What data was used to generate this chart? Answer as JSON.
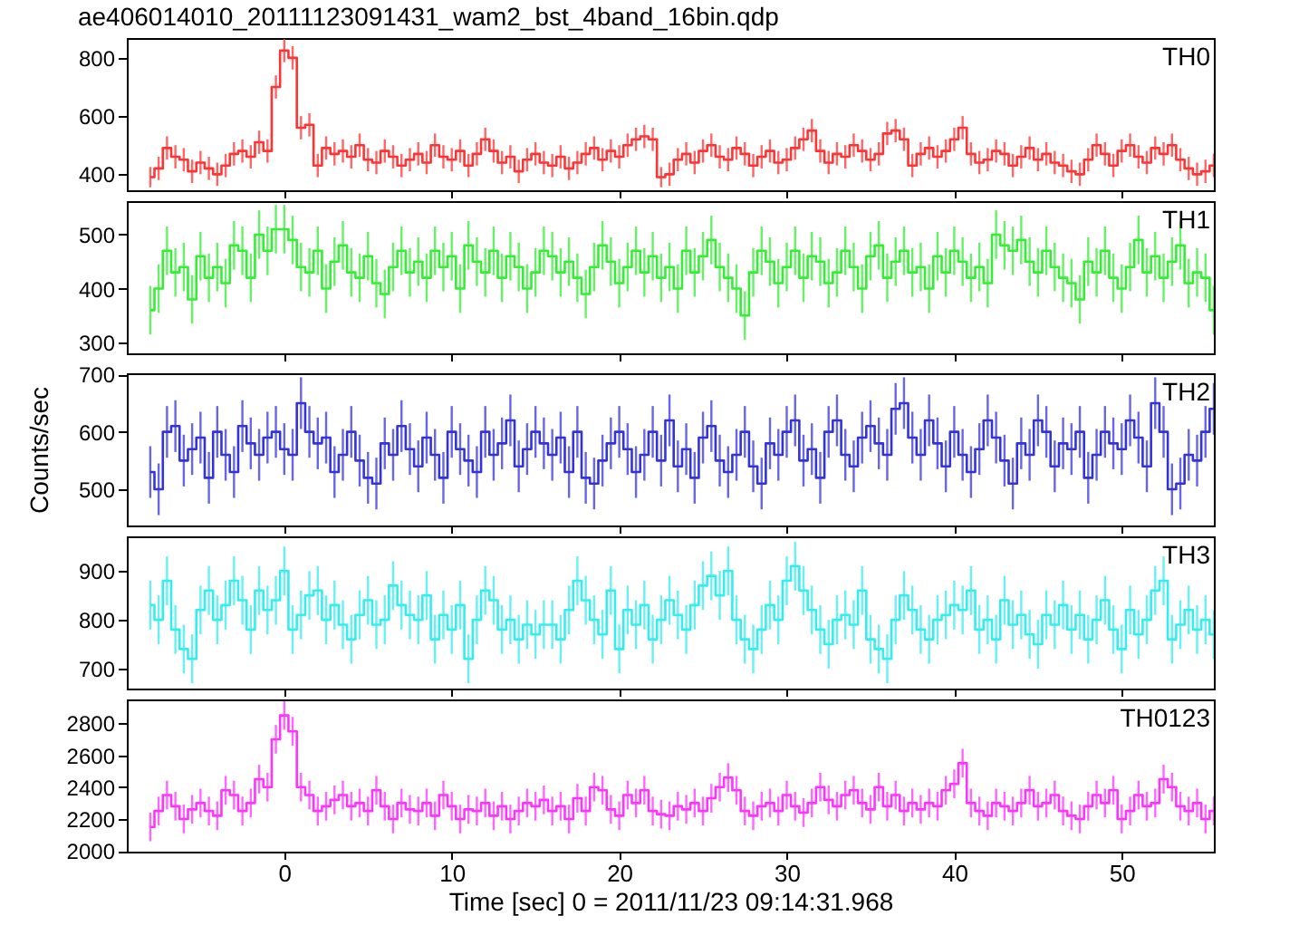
{
  "chart_data": [
    {
      "type": "step",
      "title": "ae406014010_20111123091431_wam2_bst_4band_16bin.qdp",
      "xlim": [
        -9.4,
        55.5
      ],
      "xticks": [
        0,
        10,
        20,
        30,
        40,
        50
      ],
      "ylim": [
        345,
        868
      ],
      "yticks": [
        400,
        600,
        800
      ],
      "tick_labels": "y",
      "x": [
        -8,
        -7.5,
        -7,
        -6.5,
        -6,
        -5.5,
        -5,
        -4.5,
        -4,
        -3.5,
        -3,
        -2.5,
        -2,
        -1.5,
        -1,
        -0.5,
        0,
        0.5,
        1,
        1.5,
        2,
        2.5,
        3,
        3.5,
        4,
        4.5,
        5,
        5.5,
        6,
        6.5,
        7,
        7.5,
        8,
        8.5,
        9,
        9.5,
        10,
        10.5,
        11,
        11.5,
        12,
        12.5,
        13,
        13.5,
        14,
        14.5,
        15,
        15.5,
        16,
        16.5,
        17,
        17.5,
        18,
        18.5,
        19,
        19.5,
        20,
        20.5,
        21,
        21.5,
        22,
        22.5,
        23,
        23.5,
        24,
        24.5,
        25,
        25.5,
        26,
        26.5,
        27,
        27.5,
        28,
        28.5,
        29,
        29.5,
        30,
        30.5,
        31,
        31.5,
        32,
        32.5,
        33,
        33.5,
        34,
        34.5,
        35,
        35.5,
        36,
        36.5,
        37,
        37.5,
        38,
        38.5,
        39,
        39.5,
        40,
        40.5,
        41,
        41.5,
        42,
        42.5,
        43,
        43.5,
        44,
        44.5,
        45,
        45.5,
        46,
        46.5,
        47,
        47.5,
        48,
        48.5,
        49,
        49.5,
        50,
        50.5,
        51,
        51.5,
        52,
        52.5,
        53,
        53.5,
        54,
        54.5,
        55,
        55.5
      ],
      "series": [
        {
          "name": "TH0",
          "color": "#ff3333",
          "values": [
            390,
            420,
            490,
            460,
            450,
            410,
            440,
            420,
            400,
            430,
            470,
            480,
            460,
            510,
            480,
            700,
            825,
            800,
            560,
            570,
            430,
            490,
            470,
            480,
            460,
            500,
            450,
            440,
            480,
            460,
            430,
            450,
            470,
            440,
            500,
            460,
            450,
            480,
            430,
            470,
            520,
            480,
            440,
            460,
            410,
            450,
            470,
            440,
            430,
            460,
            420,
            440,
            470,
            490,
            450,
            480,
            460,
            500,
            520,
            530,
            520,
            390,
            400,
            450,
            470,
            440,
            480,
            500,
            460,
            450,
            490,
            470,
            430,
            460,
            480,
            440,
            450,
            490,
            520,
            550,
            480,
            440,
            470,
            460,
            500,
            480,
            450,
            470,
            540,
            550,
            520,
            430,
            470,
            490,
            460,
            480,
            520,
            560,
            470,
            440,
            450,
            480,
            470,
            430,
            460,
            490,
            450,
            470,
            440,
            430,
            410,
            400,
            450,
            500,
            470,
            430,
            480,
            500,
            460,
            440,
            490,
            470,
            500,
            450,
            420,
            400,
            410,
            430
          ],
          "errors": [
            35,
            40,
            40,
            40,
            40,
            40,
            40,
            40,
            40,
            40,
            40,
            40,
            40,
            40,
            40,
            40,
            40,
            40,
            40,
            40,
            40,
            40,
            40,
            40,
            40,
            40,
            40,
            40,
            40,
            40,
            40,
            40,
            40,
            40,
            40,
            40,
            40,
            40,
            40,
            40,
            40,
            40,
            40,
            40,
            40,
            40,
            40,
            40,
            40,
            40,
            40,
            40,
            40,
            40,
            40,
            40,
            40,
            40,
            40,
            40,
            40,
            35,
            40,
            40,
            40,
            40,
            40,
            40,
            40,
            40,
            40,
            40,
            40,
            40,
            40,
            40,
            40,
            40,
            40,
            40,
            40,
            40,
            40,
            40,
            40,
            40,
            40,
            40,
            40,
            40,
            40,
            40,
            40,
            40,
            40,
            40,
            40,
            40,
            40,
            40,
            40,
            40,
            40,
            40,
            40,
            40,
            40,
            40,
            40,
            40,
            40,
            40,
            40,
            40,
            40,
            40,
            40,
            40,
            40,
            40,
            40,
            40,
            40,
            40,
            40,
            40,
            40,
            40
          ]
        }
      ]
    },
    {
      "type": "step",
      "xlim": [
        -9.4,
        55.5
      ],
      "xticks": [
        0,
        10,
        20,
        30,
        40,
        50
      ],
      "ylim": [
        280,
        562
      ],
      "yticks": [
        300,
        400,
        500
      ],
      "tick_labels": "y",
      "x": [
        -8,
        -7.5,
        -7,
        -6.5,
        -6,
        -5.5,
        -5,
        -4.5,
        -4,
        -3.5,
        -3,
        -2.5,
        -2,
        -1.5,
        -1,
        -0.5,
        0,
        0.5,
        1,
        1.5,
        2,
        2.5,
        3,
        3.5,
        4,
        4.5,
        5,
        5.5,
        6,
        6.5,
        7,
        7.5,
        8,
        8.5,
        9,
        9.5,
        10,
        10.5,
        11,
        11.5,
        12,
        12.5,
        13,
        13.5,
        14,
        14.5,
        15,
        15.5,
        16,
        16.5,
        17,
        17.5,
        18,
        18.5,
        19,
        19.5,
        20,
        20.5,
        21,
        21.5,
        22,
        22.5,
        23,
        23.5,
        24,
        24.5,
        25,
        25.5,
        26,
        26.5,
        27,
        27.5,
        28,
        28.5,
        29,
        29.5,
        30,
        30.5,
        31,
        31.5,
        32,
        32.5,
        33,
        33.5,
        34,
        34.5,
        35,
        35.5,
        36,
        36.5,
        37,
        37.5,
        38,
        38.5,
        39,
        39.5,
        40,
        40.5,
        41,
        41.5,
        42,
        42.5,
        43,
        43.5,
        44,
        44.5,
        45,
        45.5,
        46,
        46.5,
        47,
        47.5,
        48,
        48.5,
        49,
        49.5,
        50,
        50.5,
        51,
        51.5,
        52,
        52.5,
        53,
        53.5,
        54,
        54.5,
        55,
        55.5
      ],
      "series": [
        {
          "name": "TH1",
          "color": "#33ee33",
          "values": [
            360,
            400,
            470,
            430,
            440,
            380,
            460,
            420,
            440,
            410,
            480,
            470,
            420,
            500,
            470,
            510,
            510,
            490,
            440,
            430,
            470,
            400,
            450,
            480,
            430,
            420,
            460,
            410,
            390,
            440,
            470,
            430,
            450,
            420,
            470,
            440,
            460,
            400,
            480,
            450,
            430,
            470,
            420,
            460,
            440,
            400,
            430,
            470,
            460,
            430,
            450,
            420,
            390,
            440,
            480,
            450,
            410,
            440,
            470,
            430,
            460,
            420,
            440,
            400,
            470,
            430,
            460,
            490,
            440,
            420,
            400,
            350,
            430,
            470,
            450,
            410,
            440,
            470,
            420,
            460,
            450,
            410,
            430,
            470,
            440,
            400,
            460,
            480,
            420,
            450,
            470,
            430,
            440,
            400,
            460,
            430,
            470,
            450,
            420,
            440,
            410,
            500,
            480,
            470,
            490,
            450,
            430,
            470,
            440,
            420,
            410,
            380,
            450,
            430,
            470,
            420,
            400,
            440,
            490,
            430,
            460,
            420,
            450,
            480,
            410,
            430,
            420,
            360
          ],
          "errors": [
            45,
            45,
            45,
            45,
            45,
            45,
            45,
            45,
            45,
            45,
            45,
            45,
            45,
            45,
            45,
            45,
            45,
            45,
            45,
            45,
            45,
            45,
            45,
            45,
            45,
            45,
            45,
            45,
            45,
            45,
            45,
            45,
            45,
            45,
            45,
            45,
            45,
            45,
            45,
            45,
            45,
            45,
            45,
            45,
            45,
            45,
            45,
            45,
            45,
            45,
            45,
            45,
            45,
            45,
            45,
            45,
            45,
            45,
            45,
            45,
            45,
            45,
            45,
            45,
            45,
            45,
            45,
            45,
            45,
            45,
            45,
            45,
            45,
            45,
            45,
            45,
            45,
            45,
            45,
            45,
            45,
            45,
            45,
            45,
            45,
            45,
            45,
            45,
            45,
            45,
            45,
            45,
            45,
            45,
            45,
            45,
            45,
            45,
            45,
            45,
            45,
            45,
            45,
            45,
            45,
            45,
            45,
            45,
            45,
            45,
            45,
            45,
            45,
            45,
            45,
            45,
            45,
            45,
            45,
            45,
            45,
            45,
            45,
            45,
            45,
            45,
            45,
            45
          ]
        }
      ]
    },
    {
      "type": "step",
      "ylabel": "Counts/sec",
      "xlim": [
        -9.4,
        55.5
      ],
      "xticks": [
        0,
        10,
        20,
        30,
        40,
        50
      ],
      "ylim": [
        437,
        702
      ],
      "yticks": [
        500,
        600,
        700
      ],
      "tick_labels": "y",
      "x": [
        -8,
        -7.5,
        -7,
        -6.5,
        -6,
        -5.5,
        -5,
        -4.5,
        -4,
        -3.5,
        -3,
        -2.5,
        -2,
        -1.5,
        -1,
        -0.5,
        0,
        0.5,
        1,
        1.5,
        2,
        2.5,
        3,
        3.5,
        4,
        4.5,
        5,
        5.5,
        6,
        6.5,
        7,
        7.5,
        8,
        8.5,
        9,
        9.5,
        10,
        10.5,
        11,
        11.5,
        12,
        12.5,
        13,
        13.5,
        14,
        14.5,
        15,
        15.5,
        16,
        16.5,
        17,
        17.5,
        18,
        18.5,
        19,
        19.5,
        20,
        20.5,
        21,
        21.5,
        22,
        22.5,
        23,
        23.5,
        24,
        24.5,
        25,
        25.5,
        26,
        26.5,
        27,
        27.5,
        28,
        28.5,
        29,
        29.5,
        30,
        30.5,
        31,
        31.5,
        32,
        32.5,
        33,
        33.5,
        34,
        34.5,
        35,
        35.5,
        36,
        36.5,
        37,
        37.5,
        38,
        38.5,
        39,
        39.5,
        40,
        40.5,
        41,
        41.5,
        42,
        42.5,
        43,
        43.5,
        44,
        44.5,
        45,
        45.5,
        46,
        46.5,
        47,
        47.5,
        48,
        48.5,
        49,
        49.5,
        50,
        50.5,
        51,
        51.5,
        52,
        52.5,
        53,
        53.5,
        54,
        54.5,
        55,
        55.5
      ],
      "series": [
        {
          "name": "TH2",
          "color": "#3333dd",
          "values": [
            530,
            500,
            600,
            610,
            550,
            570,
            590,
            520,
            600,
            560,
            530,
            610,
            580,
            560,
            590,
            600,
            570,
            560,
            650,
            600,
            580,
            590,
            530,
            560,
            600,
            550,
            520,
            510,
            580,
            560,
            610,
            570,
            540,
            590,
            560,
            520,
            600,
            570,
            550,
            530,
            600,
            560,
            580,
            620,
            540,
            570,
            600,
            580,
            560,
            590,
            530,
            600,
            520,
            510,
            550,
            580,
            600,
            570,
            530,
            560,
            600,
            550,
            620,
            540,
            570,
            520,
            590,
            610,
            550,
            530,
            560,
            600,
            540,
            510,
            580,
            560,
            600,
            620,
            550,
            570,
            520,
            600,
            620,
            560,
            540,
            590,
            610,
            580,
            560,
            640,
            650,
            590,
            560,
            620,
            580,
            540,
            600,
            560,
            530,
            570,
            620,
            590,
            550,
            510,
            580,
            560,
            620,
            600,
            540,
            580,
            570,
            600,
            520,
            560,
            600,
            580,
            570,
            620,
            590,
            540,
            650,
            600,
            500,
            510,
            560,
            550,
            600,
            640
          ],
          "errors": [
            45,
            45,
            45,
            45,
            45,
            45,
            45,
            45,
            45,
            45,
            45,
            45,
            45,
            45,
            45,
            45,
            45,
            45,
            45,
            45,
            45,
            45,
            45,
            45,
            45,
            45,
            45,
            45,
            45,
            45,
            45,
            45,
            45,
            45,
            45,
            45,
            45,
            45,
            45,
            45,
            45,
            45,
            45,
            45,
            45,
            45,
            45,
            45,
            45,
            45,
            45,
            45,
            45,
            45,
            45,
            45,
            45,
            45,
            45,
            45,
            45,
            45,
            45,
            45,
            45,
            45,
            45,
            45,
            45,
            45,
            45,
            45,
            45,
            45,
            45,
            45,
            45,
            45,
            45,
            45,
            45,
            45,
            45,
            45,
            45,
            45,
            45,
            45,
            45,
            45,
            45,
            45,
            45,
            45,
            45,
            45,
            45,
            45,
            45,
            45,
            45,
            45,
            45,
            45,
            45,
            45,
            45,
            45,
            45,
            45,
            45,
            45,
            45,
            45,
            45,
            45,
            45,
            45,
            45,
            45,
            45,
            45,
            45,
            45,
            45,
            45,
            45,
            45
          ]
        }
      ]
    },
    {
      "type": "step",
      "xlim": [
        -9.4,
        55.5
      ],
      "xticks": [
        0,
        10,
        20,
        30,
        40,
        50
      ],
      "ylim": [
        659,
        971
      ],
      "yticks": [
        700,
        800,
        900
      ],
      "tick_labels": "y",
      "x": [
        -8,
        -7.5,
        -7,
        -6.5,
        -6,
        -5.5,
        -5,
        -4.5,
        -4,
        -3.5,
        -3,
        -2.5,
        -2,
        -1.5,
        -1,
        -0.5,
        0,
        0.5,
        1,
        1.5,
        2,
        2.5,
        3,
        3.5,
        4,
        4.5,
        5,
        5.5,
        6,
        6.5,
        7,
        7.5,
        8,
        8.5,
        9,
        9.5,
        10,
        10.5,
        11,
        11.5,
        12,
        12.5,
        13,
        13.5,
        14,
        14.5,
        15,
        15.5,
        16,
        16.5,
        17,
        17.5,
        18,
        18.5,
        19,
        19.5,
        20,
        20.5,
        21,
        21.5,
        22,
        22.5,
        23,
        23.5,
        24,
        24.5,
        25,
        25.5,
        26,
        26.5,
        27,
        27.5,
        28,
        28.5,
        29,
        29.5,
        30,
        30.5,
        31,
        31.5,
        32,
        32.5,
        33,
        33.5,
        34,
        34.5,
        35,
        35.5,
        36,
        36.5,
        37,
        37.5,
        38,
        38.5,
        39,
        39.5,
        40,
        40.5,
        41,
        41.5,
        42,
        42.5,
        43,
        43.5,
        44,
        44.5,
        45,
        45.5,
        46,
        46.5,
        47,
        47.5,
        48,
        48.5,
        49,
        49.5,
        50,
        50.5,
        51,
        51.5,
        52,
        52.5,
        53,
        53.5,
        54,
        54.5,
        55,
        55.5
      ],
      "series": [
        {
          "name": "TH3",
          "color": "#33eeee",
          "values": [
            830,
            800,
            880,
            780,
            740,
            720,
            820,
            860,
            800,
            830,
            880,
            840,
            780,
            860,
            820,
            840,
            900,
            780,
            810,
            850,
            860,
            800,
            830,
            790,
            760,
            810,
            840,
            790,
            800,
            870,
            830,
            810,
            800,
            850,
            760,
            810,
            780,
            830,
            720,
            800,
            860,
            840,
            780,
            800,
            760,
            790,
            770,
            790,
            790,
            760,
            820,
            880,
            840,
            800,
            770,
            860,
            740,
            820,
            790,
            830,
            760,
            800,
            840,
            810,
            780,
            830,
            870,
            890,
            850,
            900,
            800,
            760,
            740,
            780,
            830,
            800,
            880,
            910,
            860,
            820,
            780,
            750,
            800,
            810,
            790,
            860,
            760,
            740,
            720,
            800,
            850,
            820,
            780,
            760,
            800,
            810,
            830,
            820,
            860,
            780,
            800,
            760,
            840,
            790,
            810,
            770,
            750,
            810,
            790,
            830,
            780,
            810,
            760,
            800,
            840,
            780,
            740,
            820,
            770,
            800,
            860,
            880,
            760,
            790,
            820,
            780,
            800,
            770
          ],
          "errors": [
            50,
            50,
            50,
            50,
            50,
            50,
            50,
            50,
            50,
            50,
            50,
            50,
            50,
            50,
            50,
            50,
            50,
            50,
            50,
            50,
            50,
            50,
            50,
            50,
            50,
            50,
            50,
            50,
            50,
            50,
            50,
            50,
            50,
            50,
            50,
            50,
            50,
            50,
            50,
            50,
            50,
            50,
            50,
            50,
            50,
            50,
            50,
            50,
            50,
            50,
            50,
            50,
            50,
            50,
            50,
            50,
            50,
            50,
            50,
            50,
            50,
            50,
            50,
            50,
            50,
            50,
            50,
            50,
            50,
            50,
            50,
            50,
            50,
            50,
            50,
            50,
            50,
            50,
            50,
            50,
            50,
            50,
            50,
            50,
            50,
            50,
            50,
            50,
            50,
            50,
            50,
            50,
            50,
            50,
            50,
            50,
            50,
            50,
            50,
            50,
            50,
            50,
            50,
            50,
            50,
            50,
            50,
            50,
            50,
            50,
            50,
            50,
            50,
            50,
            50,
            50,
            50,
            50,
            50,
            50,
            50,
            50,
            50,
            50,
            50,
            50,
            50,
            50
          ]
        }
      ]
    },
    {
      "type": "step",
      "xlabel": "Time [sec] 0 = 2011/11/23 09:14:31.968",
      "xlim": [
        -9.4,
        55.5
      ],
      "xticks": [
        0,
        10,
        20,
        30,
        40,
        50
      ],
      "ylim": [
        1995,
        2950
      ],
      "yticks": [
        2000,
        2200,
        2400,
        2600,
        2800
      ],
      "x": [
        -8,
        -7.5,
        -7,
        -6.5,
        -6,
        -5.5,
        -5,
        -4.5,
        -4,
        -3.5,
        -3,
        -2.5,
        -2,
        -1.5,
        -1,
        -0.5,
        0,
        0.5,
        1,
        1.5,
        2,
        2.5,
        3,
        3.5,
        4,
        4.5,
        5,
        5.5,
        6,
        6.5,
        7,
        7.5,
        8,
        8.5,
        9,
        9.5,
        10,
        10.5,
        11,
        11.5,
        12,
        12.5,
        13,
        13.5,
        14,
        14.5,
        15,
        15.5,
        16,
        16.5,
        17,
        17.5,
        18,
        18.5,
        19,
        19.5,
        20,
        20.5,
        21,
        21.5,
        22,
        22.5,
        23,
        23.5,
        24,
        24.5,
        25,
        25.5,
        26,
        26.5,
        27,
        27.5,
        28,
        28.5,
        29,
        29.5,
        30,
        30.5,
        31,
        31.5,
        32,
        32.5,
        33,
        33.5,
        34,
        34.5,
        35,
        35.5,
        36,
        36.5,
        37,
        37.5,
        38,
        38.5,
        39,
        39.5,
        40,
        40.5,
        41,
        41.5,
        42,
        42.5,
        43,
        43.5,
        44,
        44.5,
        45,
        45.5,
        46,
        46.5,
        47,
        47.5,
        48,
        48.5,
        49,
        49.5,
        50,
        50.5,
        51,
        51.5,
        52,
        52.5,
        53,
        53.5,
        54,
        54.5,
        55,
        55.5
      ],
      "series": [
        {
          "name": "TH0123",
          "color": "#ff33ff",
          "values": [
            2150,
            2250,
            2350,
            2280,
            2200,
            2260,
            2300,
            2250,
            2220,
            2380,
            2350,
            2250,
            2300,
            2450,
            2400,
            2700,
            2850,
            2750,
            2400,
            2350,
            2250,
            2280,
            2320,
            2350,
            2280,
            2300,
            2250,
            2380,
            2280,
            2200,
            2300,
            2260,
            2250,
            2300,
            2220,
            2350,
            2280,
            2200,
            2260,
            2250,
            2300,
            2220,
            2280,
            2200,
            2250,
            2300,
            2280,
            2320,
            2250,
            2280,
            2200,
            2330,
            2250,
            2400,
            2380,
            2260,
            2220,
            2350,
            2300,
            2380,
            2250,
            2230,
            2220,
            2280,
            2260,
            2300,
            2250,
            2330,
            2400,
            2460,
            2380,
            2250,
            2220,
            2280,
            2300,
            2250,
            2350,
            2280,
            2240,
            2300,
            2400,
            2320,
            2280,
            2350,
            2380,
            2300,
            2260,
            2400,
            2280,
            2350,
            2250,
            2300,
            2260,
            2300,
            2280,
            2380,
            2420,
            2550,
            2300,
            2250,
            2220,
            2300,
            2280,
            2250,
            2300,
            2380,
            2280,
            2300,
            2350,
            2250,
            2220,
            2200,
            2280,
            2350,
            2300,
            2380,
            2200,
            2250,
            2350,
            2280,
            2300,
            2450,
            2400,
            2280,
            2250,
            2300,
            2200,
            2250
          ],
          "errors": [
            90,
            90,
            90,
            90,
            90,
            90,
            90,
            90,
            90,
            90,
            90,
            90,
            90,
            90,
            90,
            90,
            90,
            90,
            90,
            90,
            90,
            90,
            90,
            90,
            90,
            90,
            90,
            90,
            90,
            90,
            90,
            90,
            90,
            90,
            90,
            90,
            90,
            90,
            90,
            90,
            90,
            90,
            90,
            90,
            90,
            90,
            90,
            90,
            90,
            90,
            90,
            90,
            90,
            90,
            90,
            90,
            90,
            90,
            90,
            90,
            90,
            90,
            90,
            90,
            90,
            90,
            90,
            90,
            90,
            90,
            90,
            90,
            90,
            90,
            90,
            90,
            90,
            90,
            90,
            90,
            90,
            90,
            90,
            90,
            90,
            90,
            90,
            90,
            90,
            90,
            90,
            90,
            90,
            90,
            90,
            90,
            90,
            90,
            90,
            90,
            90,
            90,
            90,
            90,
            90,
            90,
            90,
            90,
            90,
            90,
            90,
            90,
            90,
            90,
            90,
            90,
            90,
            90,
            90,
            90,
            90,
            90,
            90,
            90,
            90,
            90,
            90,
            90
          ]
        }
      ]
    }
  ]
}
